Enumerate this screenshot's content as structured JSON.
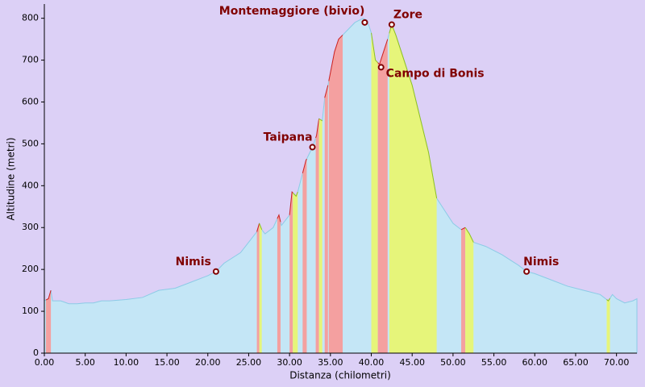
{
  "chart_data": {
    "type": "area",
    "x_label": "Distanza (chilometri)",
    "y_label": "Altitudine (metri)",
    "x": [
      0,
      0.5,
      0.8,
      1,
      2,
      3,
      4,
      5,
      6,
      7,
      8,
      10,
      12,
      14,
      16,
      18,
      20,
      21,
      22,
      24,
      25,
      26,
      26.3,
      26.6,
      27,
      28,
      28.7,
      29,
      30,
      30.3,
      30.8,
      31,
      32,
      32.8,
      33.3,
      33.6,
      34,
      34.3,
      34.7,
      35,
      35.5,
      36,
      36.5,
      37,
      38,
      39,
      39.5,
      40,
      40.5,
      41,
      41.5,
      42,
      42.5,
      43,
      44,
      45,
      46,
      47,
      48,
      49,
      50,
      51,
      51.5,
      52,
      52.5,
      54,
      56,
      58,
      59,
      60,
      62,
      64,
      66,
      68,
      69,
      69.5,
      70,
      71,
      72,
      72.5
    ],
    "values": [
      125,
      130,
      150,
      125,
      125,
      118,
      118,
      120,
      120,
      125,
      125,
      128,
      133,
      150,
      155,
      170,
      185,
      195,
      215,
      240,
      265,
      290,
      310,
      295,
      285,
      300,
      330,
      305,
      330,
      385,
      375,
      385,
      460,
      492,
      520,
      560,
      555,
      610,
      640,
      670,
      720,
      750,
      760,
      770,
      790,
      800,
      795,
      765,
      700,
      690,
      720,
      750,
      785,
      760,
      700,
      640,
      560,
      480,
      370,
      340,
      310,
      295,
      300,
      285,
      265,
      255,
      235,
      210,
      195,
      190,
      175,
      160,
      150,
      140,
      125,
      140,
      130,
      120,
      125,
      130
    ],
    "color": "#c4e6f6",
    "line_color": "#8ccbe6",
    "background": "#dcd0f6",
    "bands": [
      {
        "start": 0.2,
        "end": 0.8,
        "color": "#f4a0a0"
      },
      {
        "start": 26,
        "end": 26.3,
        "color": "#f4a0a0"
      },
      {
        "start": 26.3,
        "end": 26.6,
        "color": "#e6f57a"
      },
      {
        "start": 28.5,
        "end": 28.9,
        "color": "#f4a0a0"
      },
      {
        "start": 30,
        "end": 30.4,
        "color": "#f4a0a0"
      },
      {
        "start": 30.4,
        "end": 31,
        "color": "#e6f57a"
      },
      {
        "start": 31.6,
        "end": 32.1,
        "color": "#f4a0a0"
      },
      {
        "start": 33.2,
        "end": 33.6,
        "color": "#f4a0a0"
      },
      {
        "start": 33.6,
        "end": 34,
        "color": "#e6f57a"
      },
      {
        "start": 34.3,
        "end": 34.7,
        "color": "#f4a0a0"
      },
      {
        "start": 34.8,
        "end": 36.5,
        "color": "#f4a0a0"
      },
      {
        "start": 40,
        "end": 40.8,
        "color": "#e6f57a"
      },
      {
        "start": 40.8,
        "end": 42,
        "color": "#f4a0a0"
      },
      {
        "start": 42.2,
        "end": 48,
        "color": "#e6f57a"
      },
      {
        "start": 51,
        "end": 51.5,
        "color": "#f4a0a0"
      },
      {
        "start": 51.5,
        "end": 52.5,
        "color": "#e6f57a"
      },
      {
        "start": 68.8,
        "end": 69.2,
        "color": "#e6f57a"
      }
    ],
    "annotations": [
      {
        "text": "Nimis",
        "x": 21,
        "y": 195
      },
      {
        "text": "Taipana",
        "x": 32.8,
        "y": 492
      },
      {
        "text": "Montemaggiore (bivio)",
        "x": 39.2,
        "y": 790
      },
      {
        "text": "Zore",
        "x": 42.5,
        "y": 785
      },
      {
        "text": "Campo di Bonis",
        "x": 41.2,
        "y": 683
      },
      {
        "text": "Nimis",
        "x": 59,
        "y": 195
      }
    ],
    "xlim": [
      0,
      72.5
    ],
    "ylim": [
      0,
      834
    ],
    "xticks": [
      {
        "value": 0,
        "label": "0.00"
      },
      {
        "value": 5,
        "label": "5.00"
      },
      {
        "value": 10,
        "label": "10.00"
      },
      {
        "value": 15,
        "label": "15.00"
      },
      {
        "value": 20,
        "label": "20.00"
      },
      {
        "value": 25,
        "label": "25.00"
      },
      {
        "value": 30,
        "label": "30.00"
      },
      {
        "value": 35,
        "label": "35.00"
      },
      {
        "value": 40,
        "label": "40.00"
      },
      {
        "value": 45,
        "label": "45.00"
      },
      {
        "value": 50,
        "label": "50.00"
      },
      {
        "value": 55,
        "label": "55.00"
      },
      {
        "value": 60,
        "label": "60.00"
      },
      {
        "value": 65,
        "label": "65.00"
      },
      {
        "value": 70,
        "label": "70.00"
      }
    ],
    "yticks": [
      0,
      100,
      200,
      300,
      400,
      500,
      600,
      700,
      800
    ]
  }
}
